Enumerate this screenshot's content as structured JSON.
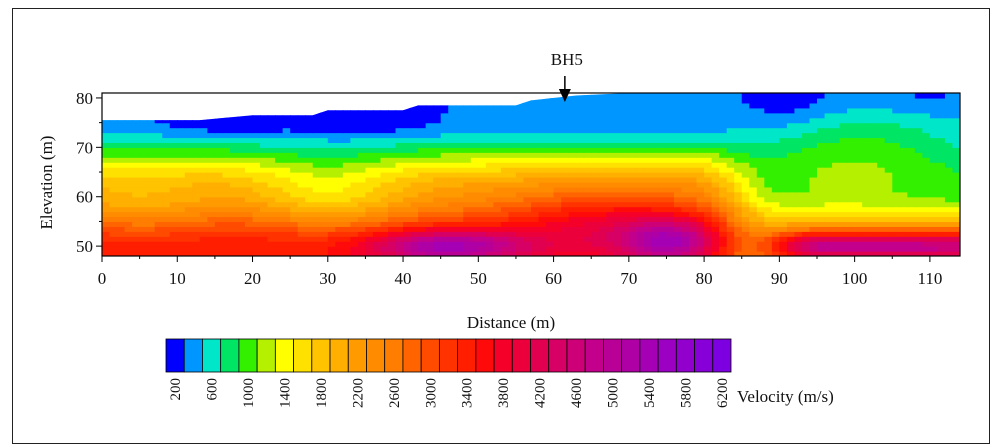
{
  "chart_data": {
    "type": "heatmap",
    "title": "",
    "xlabel": "Distance (m)",
    "ylabel": "Elevation (m)",
    "xlim": [
      0,
      114
    ],
    "ylim": [
      48,
      81
    ],
    "x_ticks": [
      0,
      10,
      20,
      30,
      40,
      50,
      60,
      70,
      80,
      90,
      100,
      110
    ],
    "y_ticks": [
      50,
      60,
      70,
      80
    ],
    "grid": false,
    "annotation": {
      "label": "BH5",
      "x": 61.5
    },
    "colorbar": {
      "label": "Velocity (m/s)",
      "tick_labels": [
        200,
        600,
        1000,
        1400,
        1800,
        2200,
        2600,
        3000,
        3400,
        3800,
        4200,
        4600,
        5000,
        5400,
        5800,
        6200
      ],
      "levels": [
        200,
        400,
        600,
        800,
        1000,
        1200,
        1400,
        1600,
        1800,
        2000,
        2200,
        2400,
        2600,
        2800,
        3000,
        3200,
        3400,
        3600,
        3800,
        4000,
        4200,
        4400,
        4600,
        4800,
        5000,
        5200,
        5400,
        5600,
        5800,
        6000,
        6200
      ],
      "colors": [
        "#0000ff",
        "#0096ff",
        "#00e6c8",
        "#00e664",
        "#32f000",
        "#b4f000",
        "#ffff00",
        "#ffe100",
        "#ffc300",
        "#ffaf00",
        "#ff9b00",
        "#ff8c00",
        "#ff7d00",
        "#ff6400",
        "#ff4b00",
        "#ff3200",
        "#ff1e00",
        "#ff0a0a",
        "#f50028",
        "#eb003c",
        "#e10050",
        "#d70064",
        "#cd0078",
        "#c3008c",
        "#b90096",
        "#af00a5",
        "#a500b4",
        "#9b00c3",
        "#9100cd",
        "#8700d7",
        "#7d00e1"
      ]
    },
    "topography": {
      "x": [
        0,
        13,
        20,
        28,
        30,
        40,
        42,
        55,
        57,
        63,
        70,
        114
      ],
      "y": [
        75.5,
        75.5,
        76.5,
        76.5,
        77.5,
        77.5,
        78.5,
        78.5,
        79.5,
        80.5,
        81,
        81
      ]
    }
  }
}
